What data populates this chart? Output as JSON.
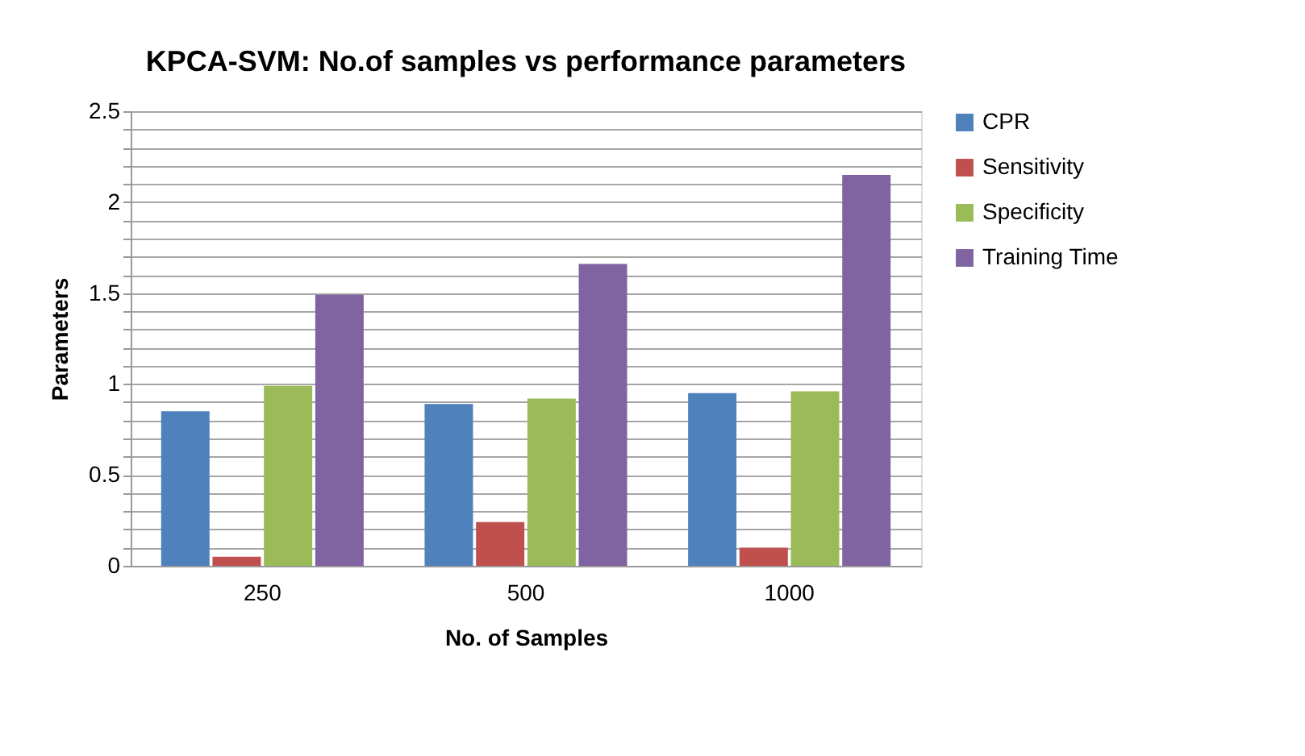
{
  "chart_data": {
    "type": "bar",
    "title": "KPCA-SVM: No.of samples vs performance parameters",
    "xlabel": "No. of Samples",
    "ylabel": "Parameters",
    "categories": [
      "250",
      "500",
      "1000"
    ],
    "series": [
      {
        "name": "CPR",
        "color": "#4f81bd",
        "values": [
          0.85,
          0.89,
          0.95
        ]
      },
      {
        "name": "Sensitivity",
        "color": "#c0504d",
        "values": [
          0.05,
          0.24,
          0.1
        ]
      },
      {
        "name": "Specificity",
        "color": "#9bbb59",
        "values": [
          0.99,
          0.92,
          0.96
        ]
      },
      {
        "name": "Training Time",
        "color": "#8064a2",
        "values": [
          1.49,
          1.66,
          2.15
        ]
      }
    ],
    "ylim": [
      0,
      2.5
    ],
    "yticks": [
      0,
      {
        "value": 0.1,
        "label": null
      },
      {
        "value": 0.2,
        "label": null
      },
      {
        "value": 0.3,
        "label": null
      },
      {
        "value": 0.4,
        "label": null
      },
      {
        "value": 0.5,
        "label": "0.5"
      },
      {
        "value": 0.6,
        "label": null
      },
      {
        "value": 0.7,
        "label": null
      },
      {
        "value": 0.8,
        "label": null
      },
      {
        "value": 0.9,
        "label": null
      },
      1,
      {
        "value": 1.1,
        "label": null
      },
      {
        "value": 1.2,
        "label": null
      },
      {
        "value": 1.3,
        "label": null
      },
      {
        "value": 1.4,
        "label": null
      },
      1.5,
      {
        "value": 1.6,
        "label": null
      },
      {
        "value": 1.7,
        "label": null
      },
      {
        "value": 1.8,
        "label": null
      },
      {
        "value": 1.9,
        "label": null
      },
      2,
      {
        "value": 2.1,
        "label": null
      },
      {
        "value": 2.2,
        "label": null
      },
      {
        "value": 2.3,
        "label": null
      },
      {
        "value": 2.4,
        "label": null
      },
      2.5
    ],
    "grid": "y",
    "legend": "right"
  }
}
